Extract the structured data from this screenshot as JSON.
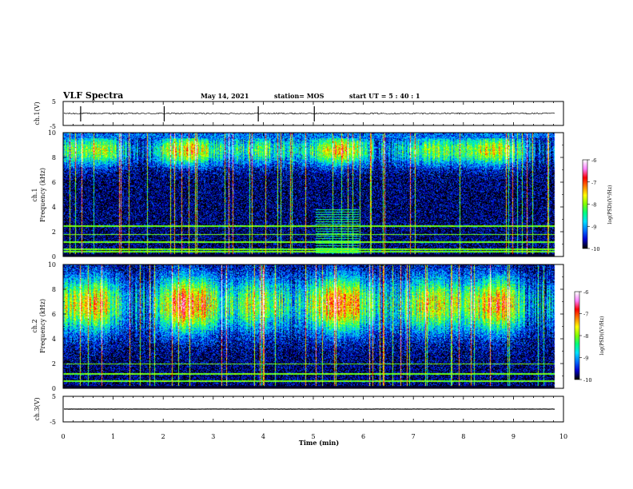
{
  "header": {
    "title": "VLF Spectra",
    "date": "May 14, 2021",
    "station": "station= MOS",
    "start": "start  UT =   5 : 40 : 1"
  },
  "chart_data": [
    {
      "type": "line",
      "name": "ch1-waveform",
      "ylabel": "ch.1(V)",
      "ylim": [
        -5,
        5
      ],
      "yticks": [
        "5",
        "-5"
      ],
      "baseline": 0,
      "noise_amplitude": 0.3
    },
    {
      "type": "heatmap",
      "name": "ch1-spectrogram",
      "ylabel": "ch.1\nFrequency (kHz)",
      "ylim": [
        0,
        10
      ],
      "yticks": [
        "0",
        "2",
        "4",
        "6",
        "8",
        "10"
      ],
      "colorbar": {
        "label": "log(PSD)(V²/Hz)",
        "range": [
          -10,
          -6
        ],
        "ticks": [
          "-6",
          "-7",
          "-8",
          "-9",
          "-10"
        ]
      },
      "profile": {
        "band_center_khz": 8.6,
        "band_width_khz": 1.2,
        "floor": -9.8,
        "band_level": -7.3
      },
      "lines_khz": [
        0.4,
        0.6,
        1.2,
        1.8,
        2.5
      ]
    },
    {
      "type": "heatmap",
      "name": "ch2-spectrogram",
      "ylabel": "ch.2\nFrequency (kHz)",
      "ylim": [
        0,
        10
      ],
      "yticks": [
        "0",
        "2",
        "4",
        "6",
        "8",
        "10"
      ],
      "colorbar": {
        "label": "log(PSD)(V²/Hz)",
        "range": [
          -10,
          -6
        ],
        "ticks": [
          "-6",
          "-7",
          "-8",
          "-9",
          "-10"
        ]
      },
      "profile": {
        "band_center_khz": 6.8,
        "band_width_khz": 2.2,
        "floor": -9.8,
        "band_level": -6.8
      },
      "lines_khz": [
        0.6,
        1.2,
        2.0
      ]
    },
    {
      "type": "line",
      "name": "ch3-waveform",
      "ylabel": "ch.3(V)",
      "ylim": [
        -5,
        5
      ],
      "yticks": [
        "5",
        "-5"
      ],
      "baseline": 0,
      "noise_amplitude": 0.05
    }
  ],
  "x_axis": {
    "label": "Time  (min)",
    "range": [
      0,
      10
    ],
    "ticks": [
      "0",
      "1",
      "2",
      "3",
      "4",
      "5",
      "6",
      "7",
      "8",
      "9",
      "10"
    ],
    "data_end_min": 9.83
  },
  "colors": {
    "palette": [
      "#000000",
      "#0000d0",
      "#0070ff",
      "#00e0ff",
      "#00ff80",
      "#80ff00",
      "#ffff00",
      "#ff8000",
      "#ff0000",
      "#ff80ff",
      "#ffffff"
    ]
  }
}
